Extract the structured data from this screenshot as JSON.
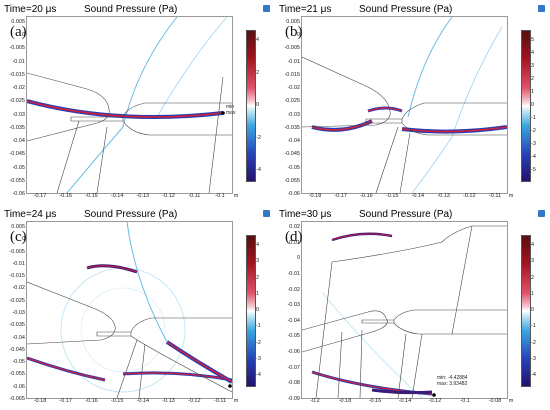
{
  "panels": [
    {
      "label": "(a)",
      "time": "Time=20 μs",
      "title": "Sound Pressure (Pa)",
      "yticks": [
        "0.005",
        "0",
        "-0.005",
        "-0.01",
        "-0.015",
        "-0.02",
        "-0.025",
        "-0.03",
        "-0.035",
        "-0.04",
        "-0.045",
        "-0.05",
        "-0.055",
        "-0.06"
      ],
      "xticks": [
        "-0.17",
        "-0.16",
        "-0.15",
        "-0.14",
        "-0.13",
        "-0.12",
        "-0.11",
        "-0.1"
      ],
      "x_unit": "m",
      "cticks": [
        "4",
        "2",
        "0",
        "-2",
        "-4"
      ],
      "minmax": [
        "min",
        "max"
      ]
    },
    {
      "label": "(b)",
      "time": "Time=21 μs",
      "title": "Sound Pressure (Pa)",
      "yticks": [
        "0.005",
        "0",
        "-0.005",
        "-0.01",
        "-0.015",
        "-0.02",
        "-0.025",
        "-0.03",
        "-0.035",
        "-0.04",
        "-0.045",
        "-0.05",
        "-0.055",
        "-0.06"
      ],
      "xticks": [
        "-0.18",
        "-0.17",
        "-0.16",
        "-0.15",
        "-0.14",
        "-0.13",
        "-0.12",
        "-0.11"
      ],
      "x_unit": "m",
      "cticks": [
        "5",
        "4",
        "3",
        "2",
        "1",
        "0",
        "-1",
        "-2",
        "-3",
        "-4",
        "-5"
      ],
      "minmax": []
    },
    {
      "label": "(c)",
      "time": "Time=24 μs",
      "title": "Sound Pressure (Pa)",
      "yticks": [
        "0.005",
        "0",
        "-0.005",
        "-0.01",
        "-0.015",
        "-0.02",
        "-0.025",
        "-0.03",
        "-0.035",
        "-0.04",
        "-0.045",
        "-0.05",
        "-0.055",
        "-0.06",
        "-0.065"
      ],
      "xticks": [
        "-0.18",
        "-0.17",
        "-0.16",
        "-0.15",
        "-0.14",
        "-0.13",
        "-0.12",
        "-0.11"
      ],
      "x_unit": "m",
      "cticks": [
        "4",
        "3",
        "2",
        "1",
        "0",
        "-1",
        "-2",
        "-3",
        "-4"
      ],
      "minmax": []
    },
    {
      "label": "(d)",
      "time": "Time=30 μs",
      "title": "Sound Pressure (Pa)",
      "yticks": [
        "0.02",
        "0.01",
        "0",
        "-0.01",
        "-0.02",
        "-0.03",
        "-0.04",
        "-0.05",
        "-0.06",
        "-0.07",
        "-0.08",
        "-0.09"
      ],
      "xticks": [
        "-0.2",
        "-0.18",
        "-0.16",
        "-0.14",
        "-0.12",
        "-0.1",
        "-0.08"
      ],
      "x_unit": "m",
      "cticks": [
        "4",
        "3",
        "2",
        "1",
        "0",
        "-1",
        "-2",
        "-3",
        "-4"
      ],
      "minmax": [
        "min: -4.42884",
        "max: 3.93482"
      ]
    }
  ]
}
